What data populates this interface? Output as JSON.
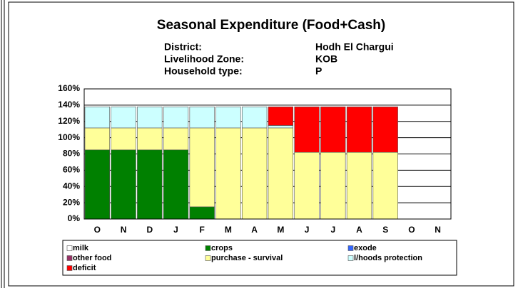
{
  "chart_data": {
    "type": "stacked_bar",
    "title": "Seasonal Expenditure (Food+Cash)",
    "info": [
      {
        "label": "District:",
        "value": "Hodh El Chargui"
      },
      {
        "label": "Livelihood Zone:",
        "value": "KOB"
      },
      {
        "label": "Household type:",
        "value": "P"
      }
    ],
    "categories": [
      "O",
      "N",
      "D",
      "J",
      "F",
      "M",
      "A",
      "M",
      "J",
      "J",
      "A",
      "S",
      "O",
      "N"
    ],
    "series": [
      {
        "name": "milk",
        "color": "#ffffff",
        "values": [
          0,
          0,
          0,
          0,
          0,
          0,
          0,
          0,
          0,
          0,
          0,
          0,
          0,
          0
        ]
      },
      {
        "name": "crops",
        "color": "#008000",
        "values": [
          85,
          85,
          85,
          85,
          15,
          0,
          0,
          0,
          0,
          0,
          0,
          0,
          0,
          0
        ]
      },
      {
        "name": "exode",
        "color": "#3366ff",
        "values": [
          0,
          0,
          0,
          0,
          0,
          0,
          0,
          0,
          0,
          0,
          0,
          0,
          0,
          0
        ]
      },
      {
        "name": "other food",
        "color": "#993366",
        "values": [
          0,
          0,
          0,
          0,
          0,
          0,
          0,
          0,
          0,
          0,
          0,
          0,
          0,
          0
        ]
      },
      {
        "name": "purchase - survival",
        "color": "#ffff99",
        "values": [
          27,
          27,
          27,
          27,
          97,
          112,
          112,
          112,
          82,
          82,
          82,
          82,
          0,
          0
        ]
      },
      {
        "name": "l/hoods protection",
        "color": "#ccffff",
        "values": [
          26,
          26,
          26,
          26,
          26,
          26,
          26,
          3,
          0,
          0,
          0,
          0,
          0,
          0
        ]
      },
      {
        "name": "deficit",
        "color": "#ff0000",
        "values": [
          0,
          0,
          0,
          0,
          0,
          0,
          0,
          23,
          56,
          56,
          56,
          56,
          0,
          0
        ]
      }
    ],
    "ylim": [
      0,
      160
    ],
    "yticks": [
      {
        "value": 0,
        "label": "0%"
      },
      {
        "value": 20,
        "label": "20%"
      },
      {
        "value": 40,
        "label": "40%"
      },
      {
        "value": 60,
        "label": "60%"
      },
      {
        "value": 80,
        "label": "80%"
      },
      {
        "value": 100,
        "label": "100%"
      },
      {
        "value": 120,
        "label": "120%"
      },
      {
        "value": 140,
        "label": "140%"
      },
      {
        "value": 160,
        "label": "160%"
      }
    ],
    "grid": true
  }
}
